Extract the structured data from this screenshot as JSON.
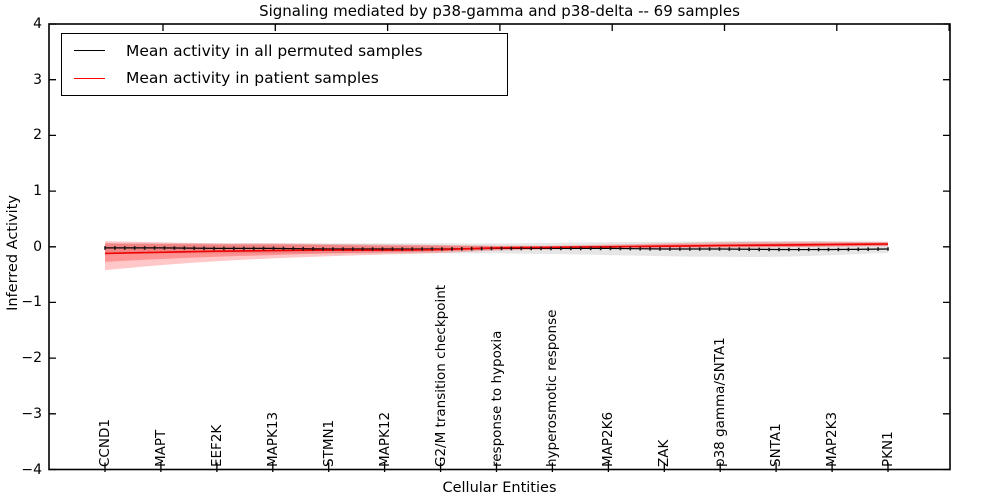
{
  "chart_data": {
    "type": "line",
    "title": "Signaling mediated by p38-gamma and p38-delta -- 69 samples",
    "xlabel": "Cellular Entities",
    "ylabel": "Inferred Activity",
    "ylim": [
      -4,
      4
    ],
    "grid": false,
    "y_ticks": [
      {
        "label": "4",
        "value": 4
      },
      {
        "label": "3",
        "value": 3
      },
      {
        "label": "2",
        "value": 2
      },
      {
        "label": "1",
        "value": 1
      },
      {
        "label": "0",
        "value": 0
      },
      {
        "label": "−1",
        "value": -1
      },
      {
        "label": "−2",
        "value": -2
      },
      {
        "label": "−3",
        "value": -3
      },
      {
        "label": "−4",
        "value": -4
      }
    ],
    "categories": [
      "CCND1",
      "MAPT",
      "EEF2K",
      "MAPK13",
      "STMN1",
      "MAPK12",
      "G2/M transition checkpoint",
      "response to hypoxia",
      "hyperosmotic response",
      "MAP2K6",
      "ZAK",
      "p38 gamma/SNTA1",
      "SNTA1",
      "MAP2K3",
      "PKN1"
    ],
    "legend": {
      "position": "upper left",
      "items": [
        {
          "label": "Mean activity in all permuted samples",
          "color": "#000000"
        },
        {
          "label": "Mean activity in patient samples",
          "color": "#ff0000"
        }
      ]
    },
    "series": [
      {
        "name": "Mean activity in all permuted samples",
        "color": "#000000",
        "values": [
          -0.02,
          -0.02,
          -0.03,
          -0.03,
          -0.04,
          -0.04,
          -0.04,
          -0.03,
          -0.03,
          -0.03,
          -0.04,
          -0.04,
          -0.05,
          -0.05,
          -0.04
        ]
      },
      {
        "name": "Mean activity in patient samples",
        "color": "#ee0000",
        "values": [
          -0.12,
          -0.1,
          -0.08,
          -0.07,
          -0.06,
          -0.06,
          -0.05,
          -0.02,
          -0.01,
          0.0,
          0.01,
          0.02,
          0.03,
          0.04,
          0.05
        ]
      }
    ],
    "bands": [
      {
        "name": "permuted-sample-range",
        "color": "#c8c8c8",
        "opacity": 0.45,
        "upper": [
          0.06,
          0.06,
          0.06,
          0.06,
          0.06,
          0.06,
          0.06,
          0.06,
          0.07,
          0.08,
          0.09,
          0.1,
          0.1,
          0.1,
          0.09
        ],
        "lower": [
          -0.12,
          -0.12,
          -0.12,
          -0.12,
          -0.12,
          -0.12,
          -0.12,
          -0.12,
          -0.13,
          -0.15,
          -0.17,
          -0.18,
          -0.18,
          -0.15,
          -0.11
        ]
      },
      {
        "name": "patient-sample-range-outer",
        "color": "#ff0000",
        "opacity": 0.22,
        "upper": [
          0.1,
          0.08,
          0.06,
          0.06,
          0.05,
          0.04,
          0.03,
          0.02,
          0.02,
          0.04,
          0.06,
          0.08,
          0.09,
          0.09,
          0.09
        ],
        "lower": [
          -0.42,
          -0.33,
          -0.26,
          -0.21,
          -0.17,
          -0.14,
          -0.11,
          -0.07,
          -0.05,
          -0.04,
          -0.03,
          -0.02,
          -0.01,
          0.0,
          0.01
        ]
      },
      {
        "name": "patient-sample-range-inner",
        "color": "#ff0000",
        "opacity": 0.26,
        "upper": [
          0.06,
          0.05,
          0.04,
          0.04,
          0.03,
          0.02,
          0.02,
          0.01,
          0.01,
          0.02,
          0.04,
          0.05,
          0.06,
          0.07,
          0.07
        ],
        "lower": [
          -0.27,
          -0.22,
          -0.18,
          -0.15,
          -0.12,
          -0.1,
          -0.08,
          -0.05,
          -0.03,
          -0.02,
          -0.01,
          0.0,
          0.0,
          0.01,
          0.02
        ]
      }
    ],
    "n_marker_points": 80,
    "marker_color": "#1a1a1a"
  }
}
